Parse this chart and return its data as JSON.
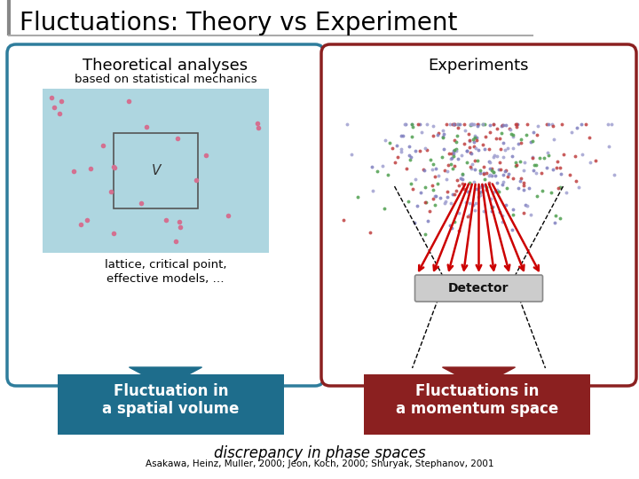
{
  "title": "Fluctuations: Theory vs Experiment",
  "title_fontsize": 20,
  "title_color": "#000000",
  "bg_color": "#ffffff",
  "left_box_color": "#2e7d9c",
  "right_box_color": "#8b2020",
  "left_arrow_color": "#1e6d8c",
  "right_arrow_color": "#8b2020",
  "left_label_top": "Theoretical analyses",
  "left_label_sub": "based on statistical mechanics",
  "left_label_bottom1": "lattice, critical point,",
  "left_label_bottom2": "effective models, …",
  "left_box_text1": "Fluctuation in",
  "left_box_text2": "a spatial volume",
  "right_label_top": "Experiments",
  "right_box_text1": "Fluctuations in",
  "right_box_text2": "a momentum space",
  "bottom_text1": "discrepancy in phase spaces",
  "bottom_text2": "Asakawa, Heinz, Muller, 2000; Jeon, Koch, 2000; Shuryak, Stephanov, 2001",
  "left_inner_bg": "#aed6e0",
  "left_dots_color": "#d47090",
  "detector_color": "#cccccc",
  "detector_edge": "#888888"
}
